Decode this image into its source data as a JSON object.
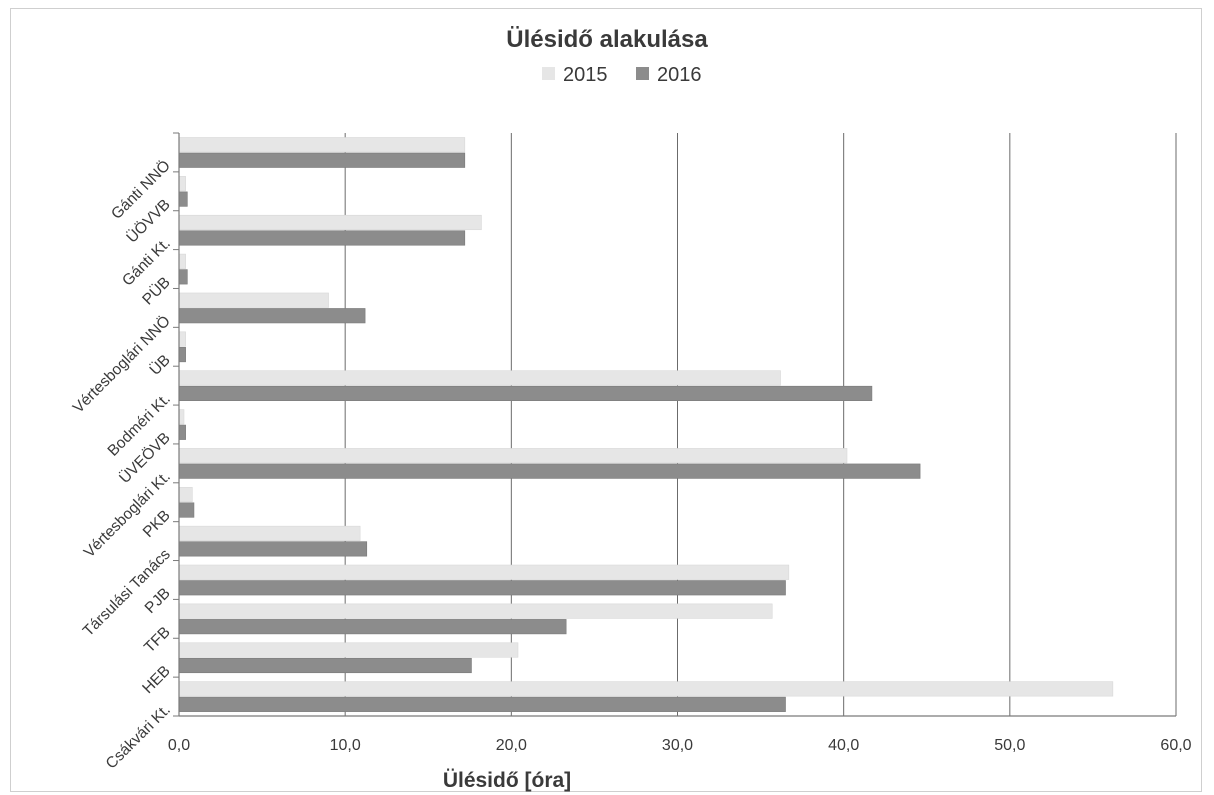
{
  "chart_data": {
    "type": "bar",
    "orientation": "horizontal",
    "title": "Ülésidő alakulása",
    "xlabel": "Ülésidő [óra]",
    "ylabel": "",
    "xlim": [
      0,
      60
    ],
    "x_ticks": [
      "0,0",
      "10,0",
      "20,0",
      "30,0",
      "40,0",
      "50,0",
      "60,0"
    ],
    "grid": "vertical major gridlines",
    "legend_position": "top",
    "categories": [
      "Gánti NNÖ",
      "ÜÖVVB",
      "Gánti Kt.",
      "PÜB",
      "Vértesboglári NNÖ",
      "ÜB",
      "Bodméri Kt.",
      "ÜVEÖVB",
      "Vértesboglári Kt.",
      "PKB",
      "Társulási Tanács",
      "PJB",
      "TFB",
      "HEB",
      "Csákvári Kt."
    ],
    "series": [
      {
        "name": "2015",
        "color": "#e6e6e6",
        "values": [
          17.2,
          0.4,
          18.2,
          0.4,
          9.0,
          0.4,
          36.2,
          0.3,
          40.2,
          0.8,
          10.9,
          36.7,
          35.7,
          20.4,
          56.2
        ]
      },
      {
        "name": "2016",
        "color": "#8c8c8c",
        "values": [
          17.2,
          0.5,
          17.2,
          0.5,
          11.2,
          0.4,
          41.7,
          0.4,
          44.6,
          0.9,
          11.3,
          36.5,
          23.3,
          17.6,
          36.5
        ]
      }
    ]
  }
}
